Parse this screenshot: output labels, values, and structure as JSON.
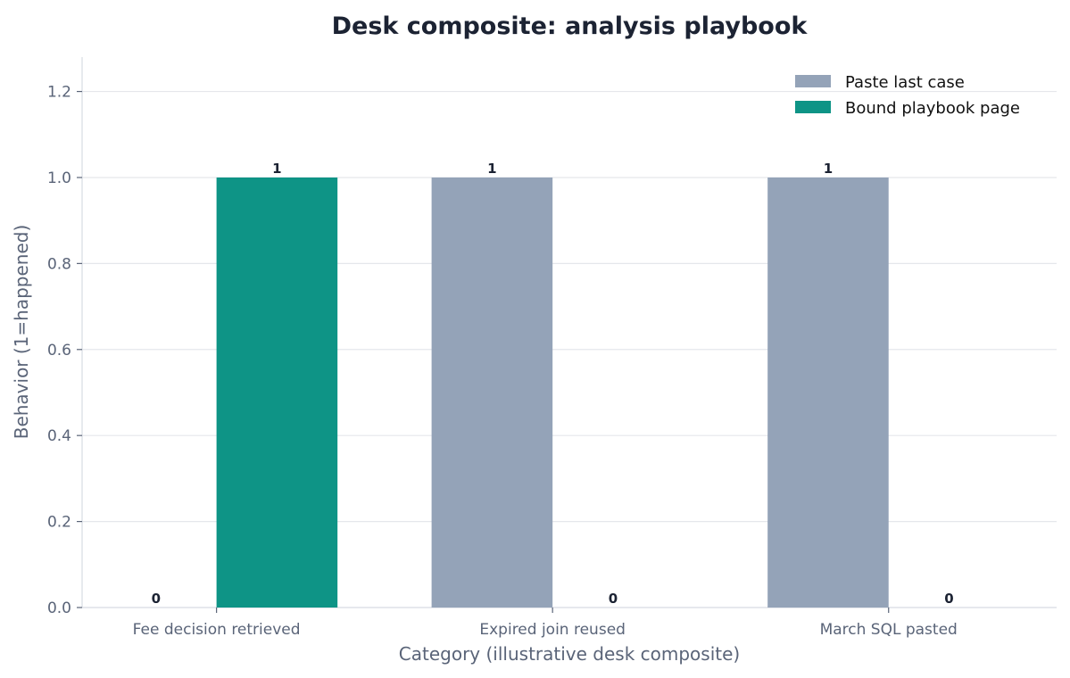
{
  "chart_data": {
    "type": "bar",
    "title": "Desk composite: analysis playbook",
    "xlabel": "Category (illustrative desk composite)",
    "ylabel": "Behavior (1=happened)",
    "categories": [
      "Fee decision retrieved",
      "Expired join reused",
      "March SQL pasted"
    ],
    "series": [
      {
        "name": "Paste last case",
        "color": "#94a3b8",
        "values": [
          0,
          1,
          1
        ]
      },
      {
        "name": "Bound playbook page",
        "color": "#0e9486",
        "values": [
          1,
          0,
          0
        ]
      }
    ],
    "ylim": [
      0,
      1.28
    ],
    "yticks": [
      0.0,
      0.2,
      0.4,
      0.6,
      0.8,
      1.0,
      1.2
    ],
    "ytick_labels": [
      "0.0",
      "0.2",
      "0.4",
      "0.6",
      "0.8",
      "1.0",
      "1.2"
    ],
    "data_labels": [
      [
        "0",
        "1",
        "1"
      ],
      [
        "1",
        "0",
        "0"
      ]
    ],
    "grid": "horizontal",
    "legend_position": "top-right",
    "colors": {
      "grid": "#e5e7eb",
      "axis": "#d7dbe2",
      "text": "#5a6478",
      "title": "#1c2333"
    }
  }
}
